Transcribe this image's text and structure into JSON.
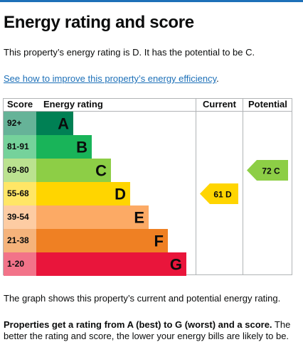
{
  "page": {
    "title": "Energy rating and score",
    "intro": "This property’s energy rating is D. It has the potential to be C.",
    "link_text": "See how to improve this property’s energy efficiency",
    "link_suffix": ".",
    "caption": "The graph shows this property’s current and potential energy rating.",
    "para_bold": "Properties get a rating from A (best) to G (worst) and a score.",
    "para_rest": " The better the rating and score, the lower your energy bills are likely to be."
  },
  "chart": {
    "headers": {
      "score": "Score",
      "rating": "Energy rating",
      "current": "Current",
      "potential": "Potential"
    },
    "bands": [
      {
        "score": "92+",
        "letter": "A",
        "color": "#008054",
        "score_bg": "#66b398"
      },
      {
        "score": "81-91",
        "letter": "B",
        "color": "#19b459",
        "score_bg": "#75d29b"
      },
      {
        "score": "69-80",
        "letter": "C",
        "color": "#8dce46",
        "score_bg": "#bbe290"
      },
      {
        "score": "55-68",
        "letter": "D",
        "color": "#ffd500",
        "score_bg": "#ffe666"
      },
      {
        "score": "39-54",
        "letter": "E",
        "color": "#fcaa65",
        "score_bg": "#fdcca3"
      },
      {
        "score": "21-38",
        "letter": "F",
        "color": "#ef8023",
        "score_bg": "#f5b37b"
      },
      {
        "score": "1-20",
        "letter": "G",
        "color": "#e9153b",
        "score_bg": "#f27389"
      }
    ],
    "current": {
      "score": 61,
      "rating": "D",
      "label": "61  D",
      "color": "#ffd500"
    },
    "potential": {
      "score": 72,
      "rating": "C",
      "label": "72  C",
      "color": "#8dce46"
    }
  },
  "chart_data": {
    "type": "bar",
    "categories": [
      "A",
      "B",
      "C",
      "D",
      "E",
      "F",
      "G"
    ],
    "score_ranges": [
      "92+",
      "81-91",
      "69-80",
      "55-68",
      "39-54",
      "21-38",
      "1-20"
    ],
    "current": {
      "score": 61,
      "rating": "D"
    },
    "potential": {
      "score": 72,
      "rating": "C"
    }
  }
}
